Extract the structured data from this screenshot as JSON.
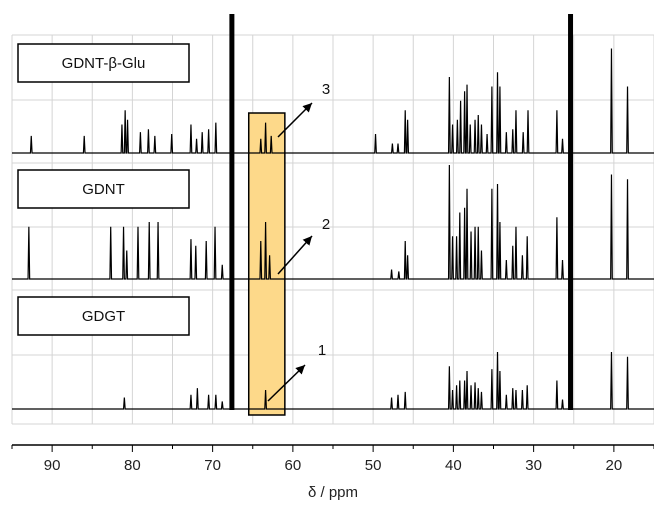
{
  "chart_data": {
    "type": "line",
    "title": "",
    "xlabel": "δ / ppm",
    "ylabel": "",
    "xlim": [
      95,
      15
    ],
    "x_reversed": true,
    "grid": true,
    "x_ticks": [
      90,
      80,
      70,
      60,
      50,
      40,
      30,
      20
    ],
    "solvent_lines_ppm": [
      67.6,
      25.4
    ],
    "highlight_region_ppm": [
      65.5,
      61.0
    ],
    "highlight_color": "#fdd98a",
    "series": [
      {
        "name": "GDNT-β-Glu",
        "color": "#000000",
        "peaks": [
          [
            92.6,
            0.18
          ],
          [
            86.0,
            0.18
          ],
          [
            81.3,
            0.3
          ],
          [
            80.9,
            0.45
          ],
          [
            80.6,
            0.35
          ],
          [
            79.0,
            0.22
          ],
          [
            78.0,
            0.25
          ],
          [
            77.2,
            0.18
          ],
          [
            75.1,
            0.2
          ],
          [
            72.7,
            0.3
          ],
          [
            72.0,
            0.15
          ],
          [
            71.3,
            0.22
          ],
          [
            70.5,
            0.25
          ],
          [
            69.6,
            0.32
          ],
          [
            64.0,
            0.15
          ],
          [
            63.4,
            0.32
          ],
          [
            62.7,
            0.18
          ],
          [
            49.7,
            0.2
          ],
          [
            47.6,
            0.1
          ],
          [
            46.9,
            0.1
          ],
          [
            46.0,
            0.45
          ],
          [
            45.7,
            0.35
          ],
          [
            40.5,
            0.8
          ],
          [
            40.1,
            0.3
          ],
          [
            39.5,
            0.35
          ],
          [
            39.1,
            0.55
          ],
          [
            38.6,
            0.65
          ],
          [
            38.3,
            0.72
          ],
          [
            37.9,
            0.3
          ],
          [
            37.3,
            0.35
          ],
          [
            36.9,
            0.4
          ],
          [
            36.5,
            0.3
          ],
          [
            35.8,
            0.2
          ],
          [
            35.2,
            0.7
          ],
          [
            34.5,
            0.85
          ],
          [
            34.2,
            0.7
          ],
          [
            33.4,
            0.22
          ],
          [
            32.6,
            0.25
          ],
          [
            32.2,
            0.45
          ],
          [
            31.3,
            0.22
          ],
          [
            30.7,
            0.45
          ],
          [
            27.1,
            0.45
          ],
          [
            26.4,
            0.15
          ],
          [
            20.3,
            1.1
          ],
          [
            18.3,
            0.7
          ]
        ],
        "label_box": "GDNT-β-Glu",
        "annotation": "3"
      },
      {
        "name": "GDNT",
        "color": "#000000",
        "peaks": [
          [
            92.9,
            0.55
          ],
          [
            82.7,
            0.55
          ],
          [
            81.1,
            0.55
          ],
          [
            80.7,
            0.3
          ],
          [
            79.3,
            0.55
          ],
          [
            77.9,
            0.6
          ],
          [
            76.8,
            0.6
          ],
          [
            72.7,
            0.42
          ],
          [
            72.1,
            0.35
          ],
          [
            70.8,
            0.4
          ],
          [
            69.7,
            0.55
          ],
          [
            68.8,
            0.15
          ],
          [
            64.0,
            0.4
          ],
          [
            63.4,
            0.6
          ],
          [
            62.9,
            0.25
          ],
          [
            47.7,
            0.1
          ],
          [
            46.8,
            0.08
          ],
          [
            46.0,
            0.4
          ],
          [
            45.7,
            0.25
          ],
          [
            40.5,
            1.2
          ],
          [
            40.1,
            0.45
          ],
          [
            39.6,
            0.45
          ],
          [
            39.2,
            0.7
          ],
          [
            38.6,
            0.75
          ],
          [
            38.3,
            0.95
          ],
          [
            37.8,
            0.5
          ],
          [
            37.3,
            0.55
          ],
          [
            36.9,
            0.55
          ],
          [
            36.5,
            0.3
          ],
          [
            35.2,
            0.95
          ],
          [
            34.5,
            1.0
          ],
          [
            34.2,
            0.6
          ],
          [
            33.4,
            0.2
          ],
          [
            32.6,
            0.35
          ],
          [
            32.2,
            0.55
          ],
          [
            31.4,
            0.25
          ],
          [
            30.8,
            0.45
          ],
          [
            27.1,
            0.65
          ],
          [
            26.4,
            0.2
          ],
          [
            20.3,
            1.1
          ],
          [
            18.3,
            1.05
          ]
        ],
        "label_box": "GDNT",
        "annotation": "2"
      },
      {
        "name": "GDGT",
        "color": "#000000",
        "peaks": [
          [
            81.0,
            0.12
          ],
          [
            72.7,
            0.15
          ],
          [
            71.9,
            0.22
          ],
          [
            70.5,
            0.15
          ],
          [
            69.6,
            0.15
          ],
          [
            68.8,
            0.08
          ],
          [
            63.4,
            0.2
          ],
          [
            47.7,
            0.12
          ],
          [
            46.9,
            0.15
          ],
          [
            46.0,
            0.18
          ],
          [
            40.5,
            0.45
          ],
          [
            40.1,
            0.2
          ],
          [
            39.6,
            0.25
          ],
          [
            39.2,
            0.3
          ],
          [
            38.6,
            0.3
          ],
          [
            38.3,
            0.4
          ],
          [
            37.8,
            0.25
          ],
          [
            37.3,
            0.28
          ],
          [
            36.9,
            0.22
          ],
          [
            36.5,
            0.18
          ],
          [
            35.2,
            0.42
          ],
          [
            34.5,
            0.6
          ],
          [
            34.2,
            0.4
          ],
          [
            33.4,
            0.15
          ],
          [
            32.6,
            0.22
          ],
          [
            32.2,
            0.2
          ],
          [
            31.4,
            0.2
          ],
          [
            30.8,
            0.25
          ],
          [
            27.1,
            0.3
          ],
          [
            26.4,
            0.1
          ],
          [
            20.3,
            0.6
          ],
          [
            18.3,
            0.55
          ]
        ],
        "label_box": "GDGT",
        "annotation": "1"
      }
    ]
  }
}
